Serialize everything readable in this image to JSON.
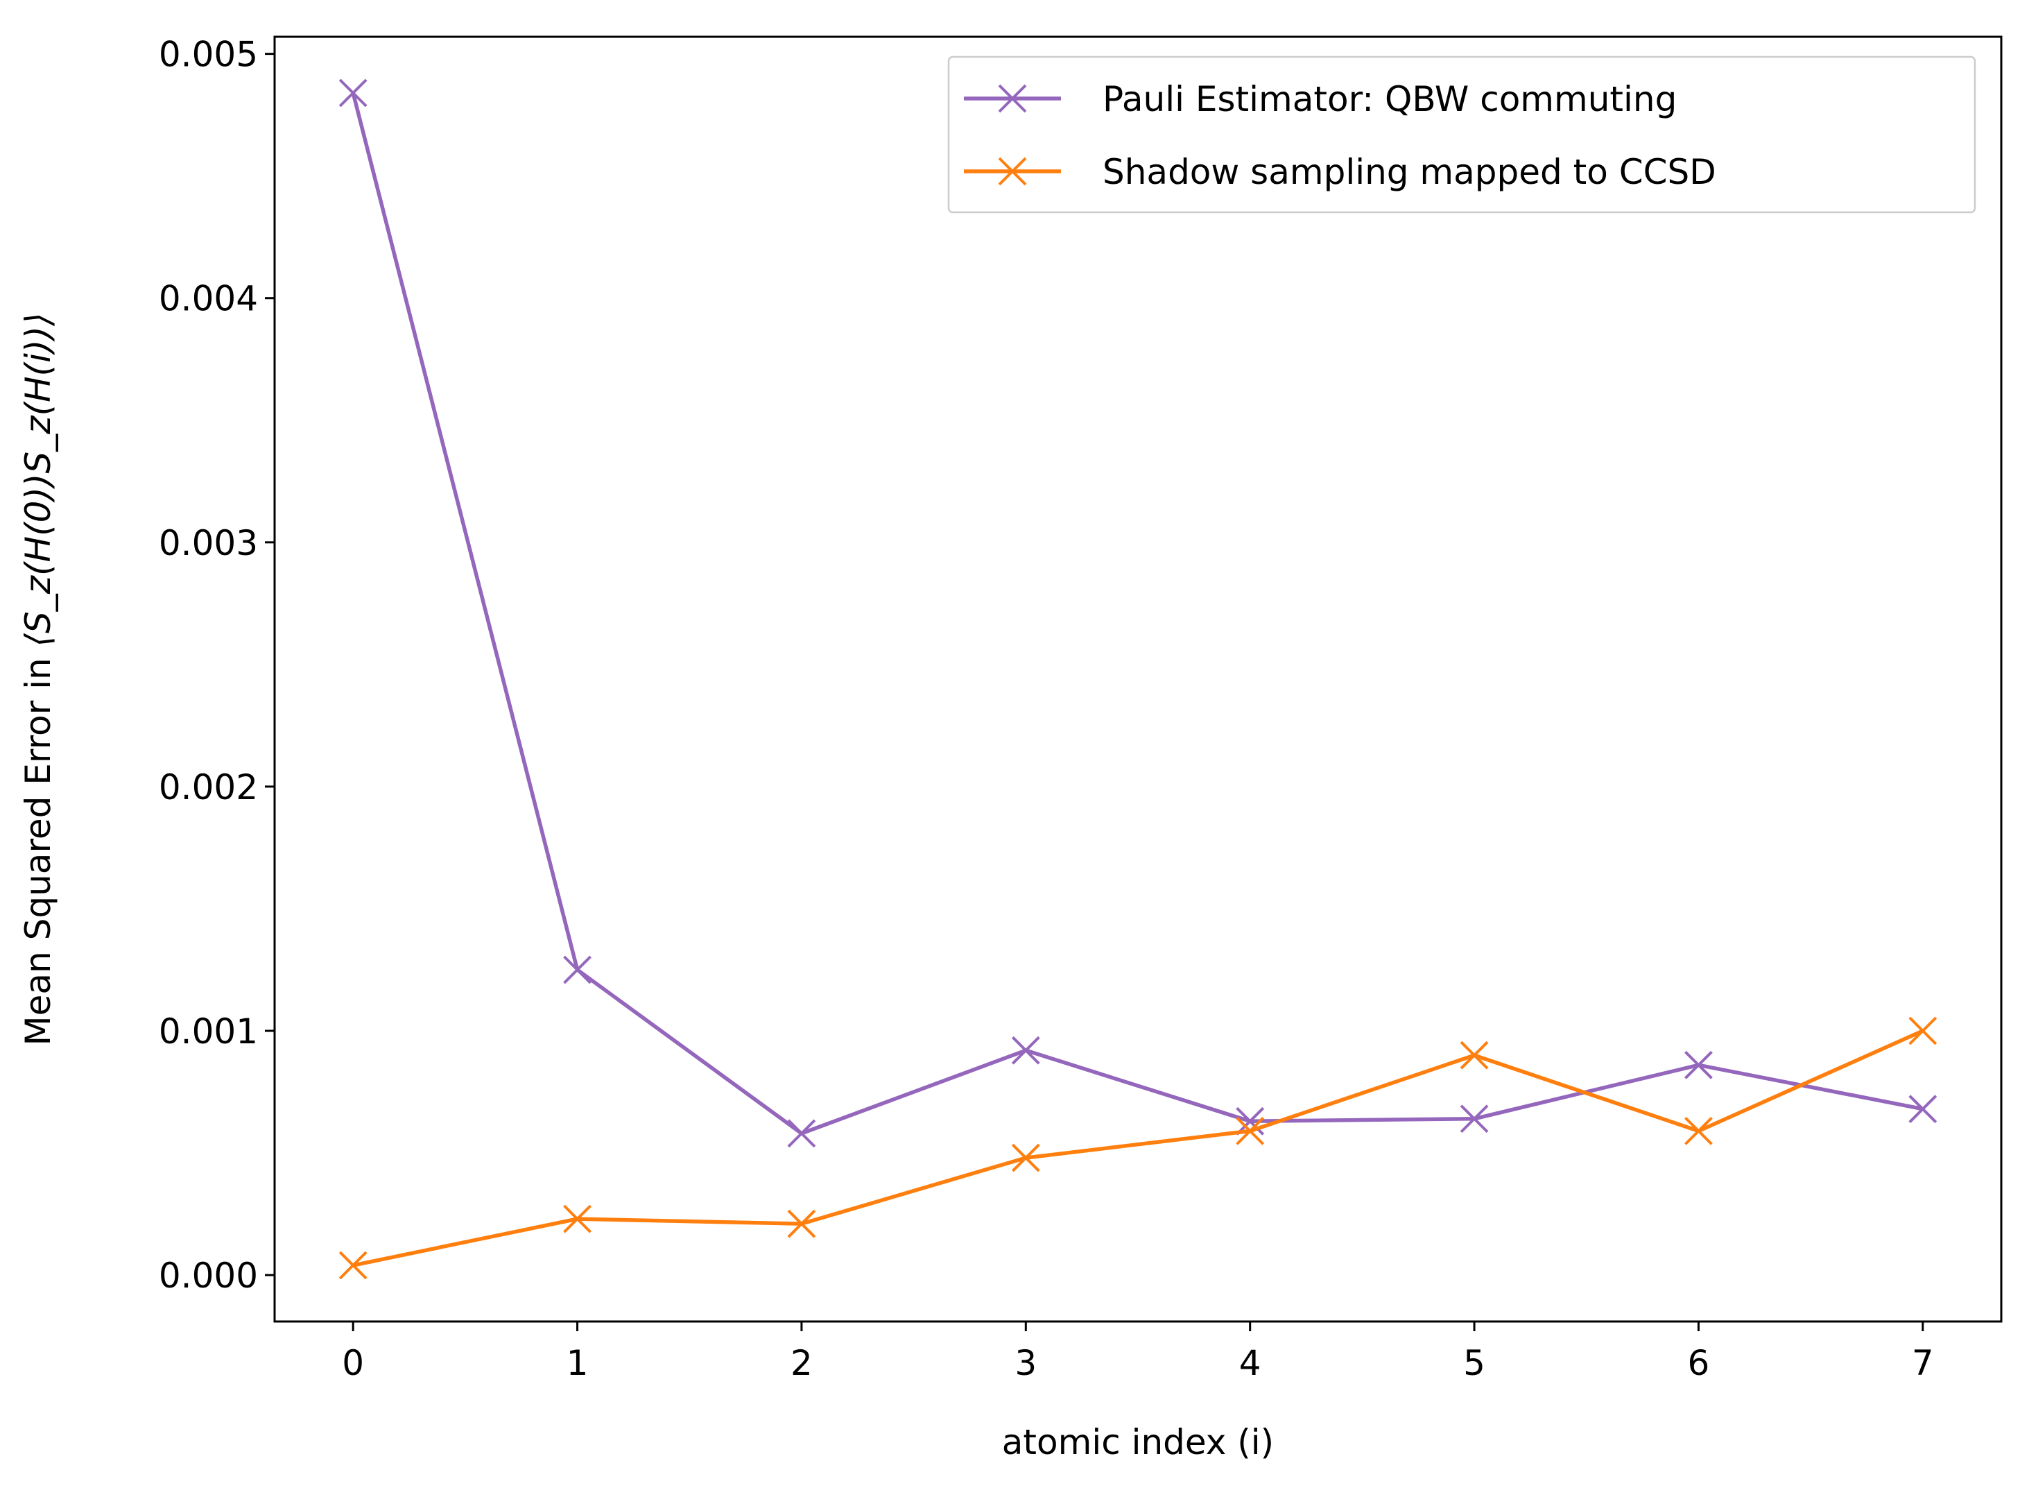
{
  "chart_data": {
    "type": "line",
    "title": "",
    "xlabel": "atomic index (i)",
    "ylabel": {
      "prefix": "Mean Squared Error in ",
      "expr": "⟨S_z(H(0))S_z(H(i))⟩"
    },
    "x": [
      0,
      1,
      2,
      3,
      4,
      5,
      6,
      7
    ],
    "xlim": [
      -0.35,
      7.35
    ],
    "ylim": [
      -0.00019,
      0.00507
    ],
    "xticks": [
      0,
      1,
      2,
      3,
      4,
      5,
      6,
      7
    ],
    "xtick_labels": [
      "0",
      "1",
      "2",
      "3",
      "4",
      "5",
      "6",
      "7"
    ],
    "yticks": [
      0.0,
      0.001,
      0.002,
      0.003,
      0.004,
      0.005
    ],
    "ytick_labels": [
      "0.000",
      "0.001",
      "0.002",
      "0.003",
      "0.004",
      "0.005"
    ],
    "grid": false,
    "legend_position": "top-right",
    "marker": "x",
    "series": [
      {
        "name": "Pauli Estimator: QBW commuting",
        "color": "#9467bd",
        "values": [
          0.00484,
          0.00125,
          0.00058,
          0.00092,
          0.00063,
          0.00064,
          0.00086,
          0.00068
        ]
      },
      {
        "name": "Shadow sampling mapped to CCSD",
        "color": "#ff7f0e",
        "values": [
          4e-05,
          0.00023,
          0.00021,
          0.00048,
          0.00059,
          0.0009,
          0.00059,
          0.001
        ]
      }
    ]
  }
}
